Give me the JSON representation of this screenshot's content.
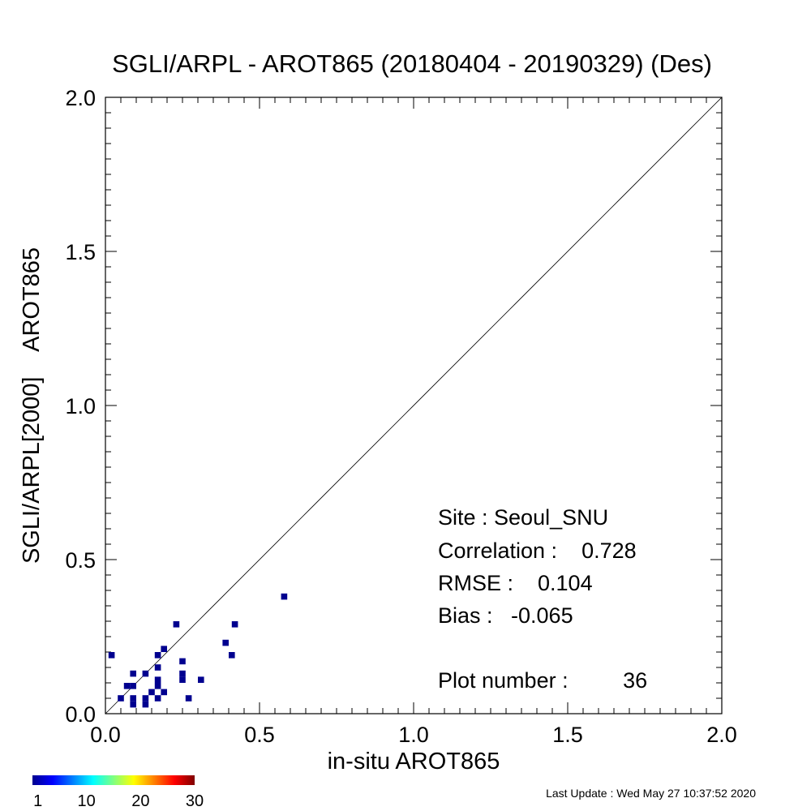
{
  "chart_data": {
    "type": "scatter",
    "title": "SGLI/ARPL - AROT865 (20180404 - 20190329) (Des)",
    "xlabel": "in-situ AROT865",
    "ylabel": "SGLI/ARPL[2000]    AROT865",
    "xlim": [
      0.0,
      2.0
    ],
    "ylim": [
      0.0,
      2.0
    ],
    "xticks": [
      "0.0",
      "0.5",
      "1.0",
      "1.5",
      "2.0"
    ],
    "yticks": [
      "0.0",
      "0.5",
      "1.0",
      "1.5",
      "2.0"
    ],
    "reference_line": "1:1",
    "grid": false,
    "cell_size": 0.02,
    "point_color": "#00008f",
    "points": [
      {
        "x": 0.58,
        "y": 0.38
      },
      {
        "x": 0.23,
        "y": 0.29
      },
      {
        "x": 0.42,
        "y": 0.29
      },
      {
        "x": 0.39,
        "y": 0.23
      },
      {
        "x": 0.02,
        "y": 0.19
      },
      {
        "x": 0.17,
        "y": 0.19
      },
      {
        "x": 0.19,
        "y": 0.21
      },
      {
        "x": 0.41,
        "y": 0.19
      },
      {
        "x": 0.25,
        "y": 0.17
      },
      {
        "x": 0.17,
        "y": 0.15
      },
      {
        "x": 0.09,
        "y": 0.13
      },
      {
        "x": 0.13,
        "y": 0.13
      },
      {
        "x": 0.25,
        "y": 0.13
      },
      {
        "x": 0.17,
        "y": 0.11
      },
      {
        "x": 0.25,
        "y": 0.11
      },
      {
        "x": 0.31,
        "y": 0.11
      },
      {
        "x": 0.07,
        "y": 0.09
      },
      {
        "x": 0.09,
        "y": 0.09
      },
      {
        "x": 0.17,
        "y": 0.09
      },
      {
        "x": 0.15,
        "y": 0.07
      },
      {
        "x": 0.19,
        "y": 0.07
      },
      {
        "x": 0.05,
        "y": 0.05
      },
      {
        "x": 0.09,
        "y": 0.05
      },
      {
        "x": 0.13,
        "y": 0.05
      },
      {
        "x": 0.17,
        "y": 0.05
      },
      {
        "x": 0.27,
        "y": 0.05
      },
      {
        "x": 0.09,
        "y": 0.03
      },
      {
        "x": 0.13,
        "y": 0.03
      }
    ],
    "stats": {
      "site": "Site : Seoul_SNU",
      "correlation": "Correlation :    0.728",
      "rmse": "RMSE :    0.104",
      "bias": "Bias :   -0.065",
      "plot_number": "Plot number :         36"
    },
    "colorbar": {
      "colors": [
        "#00008f",
        "#0000ff",
        "#0080ff",
        "#00ffff",
        "#80ff80",
        "#ffff00",
        "#ff8000",
        "#ff0000",
        "#800000"
      ],
      "ticks": [
        "1",
        "10",
        "20",
        "30"
      ],
      "tick_values": [
        1,
        10,
        20,
        30
      ],
      "range": [
        0,
        30
      ]
    }
  },
  "footer": {
    "last_update": "Last Update : Wed May 27 10:37:52 2020"
  }
}
